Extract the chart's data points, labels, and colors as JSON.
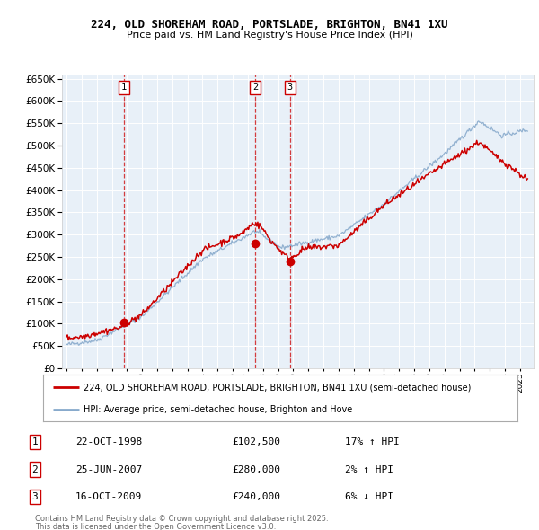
{
  "title": "224, OLD SHOREHAM ROAD, PORTSLADE, BRIGHTON, BN41 1XU",
  "subtitle": "Price paid vs. HM Land Registry's House Price Index (HPI)",
  "legend_property": "224, OLD SHOREHAM ROAD, PORTSLADE, BRIGHTON, BN41 1XU (semi-detached house)",
  "legend_hpi": "HPI: Average price, semi-detached house, Brighton and Hove",
  "footnote1": "Contains HM Land Registry data © Crown copyright and database right 2025.",
  "footnote2": "This data is licensed under the Open Government Licence v3.0.",
  "property_color": "#cc0000",
  "hpi_color": "#88aacc",
  "bg_color": "#ffffff",
  "plot_bg_color": "#e8f0f8",
  "grid_color": "#ffffff",
  "ylim_max": 660000,
  "ytick_step": 50000,
  "xmin": 1994.7,
  "xmax": 2025.9,
  "sales": [
    {
      "num": "1",
      "date_x": 1998.81,
      "price": 102500
    },
    {
      "num": "2",
      "date_x": 2007.48,
      "price": 280000
    },
    {
      "num": "3",
      "date_x": 2009.79,
      "price": 240000
    }
  ],
  "sale_table": [
    {
      "num": "1",
      "date": "22-OCT-1998",
      "price": "£102,500",
      "pct": "17% ↑ HPI"
    },
    {
      "num": "2",
      "date": "25-JUN-2007",
      "price": "£280,000",
      "pct": "2% ↑ HPI"
    },
    {
      "num": "3",
      "date": "16-OCT-2009",
      "price": "£240,000",
      "pct": "6% ↓ HPI"
    }
  ]
}
